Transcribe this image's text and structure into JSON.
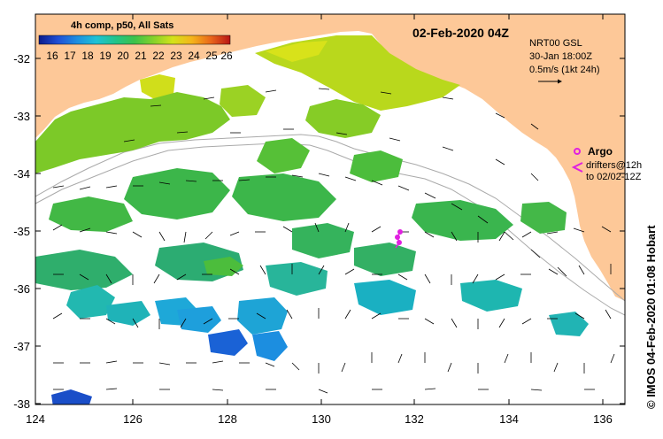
{
  "map": {
    "title": "02-Feb-2020 04Z",
    "legend_title": "4h comp, p50, All Sats",
    "colorbar_labels": [
      "16",
      "17",
      "18",
      "19",
      "20",
      "21",
      "22",
      "23",
      "24",
      "25",
      "26"
    ],
    "colorbar_colors": [
      "#0b1b8c",
      "#1f4fd6",
      "#1e8fe0",
      "#1ec2d6",
      "#22c48a",
      "#3cc24a",
      "#86d22a",
      "#d4e21a",
      "#f5b41a",
      "#e9661b",
      "#b91515"
    ],
    "current_info": {
      "line1": "NRT00 GSL",
      "line2": "30-Jan 18:00Z",
      "scale_label": "0.5m/s (1kt 24h)"
    },
    "argo": {
      "label": "Argo",
      "drifters_line1": "drifters@12h",
      "drifters_line2": "to 02/02-12Z"
    },
    "credit": "© IMOS 04-Feb-2020 01:08 Hobart",
    "x_ticks": [
      "124",
      "126",
      "128",
      "130",
      "132",
      "134",
      "136"
    ],
    "y_ticks": [
      "-32",
      "-33",
      "-34",
      "-35",
      "-36",
      "-37",
      "-38"
    ],
    "colors": {
      "land": "#fdc898",
      "ocean": "#ffffff",
      "argo": "#e020e0"
    }
  }
}
